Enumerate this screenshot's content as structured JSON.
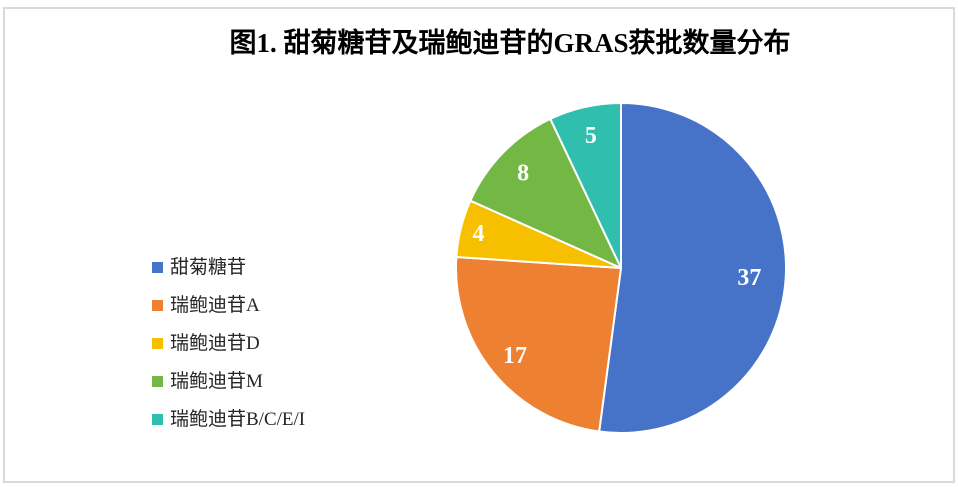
{
  "chart_data": {
    "type": "pie",
    "title": "图1. 甜菊糖苷及瑞鲍迪苷的GRAS获批数量分布",
    "total": 71,
    "start_angle_deg": 0,
    "direction": "clockwise",
    "legend_position": "left",
    "data_label_color": "#ffffff",
    "slice_border_color": "#ffffff",
    "slices": [
      {
        "label": "甜菊糖苷",
        "value": 37,
        "color": "#4673C8"
      },
      {
        "label": "瑞鲍迪苷A",
        "value": 17,
        "color": "#EE8031"
      },
      {
        "label": "瑞鲍迪苷D",
        "value": 4,
        "color": "#F6BF00"
      },
      {
        "label": "瑞鲍迪苷M",
        "value": 8,
        "color": "#73B844"
      },
      {
        "label": "瑞鲍迪苷B/C/E/I",
        "value": 5,
        "color": "#30BFAE"
      }
    ]
  }
}
